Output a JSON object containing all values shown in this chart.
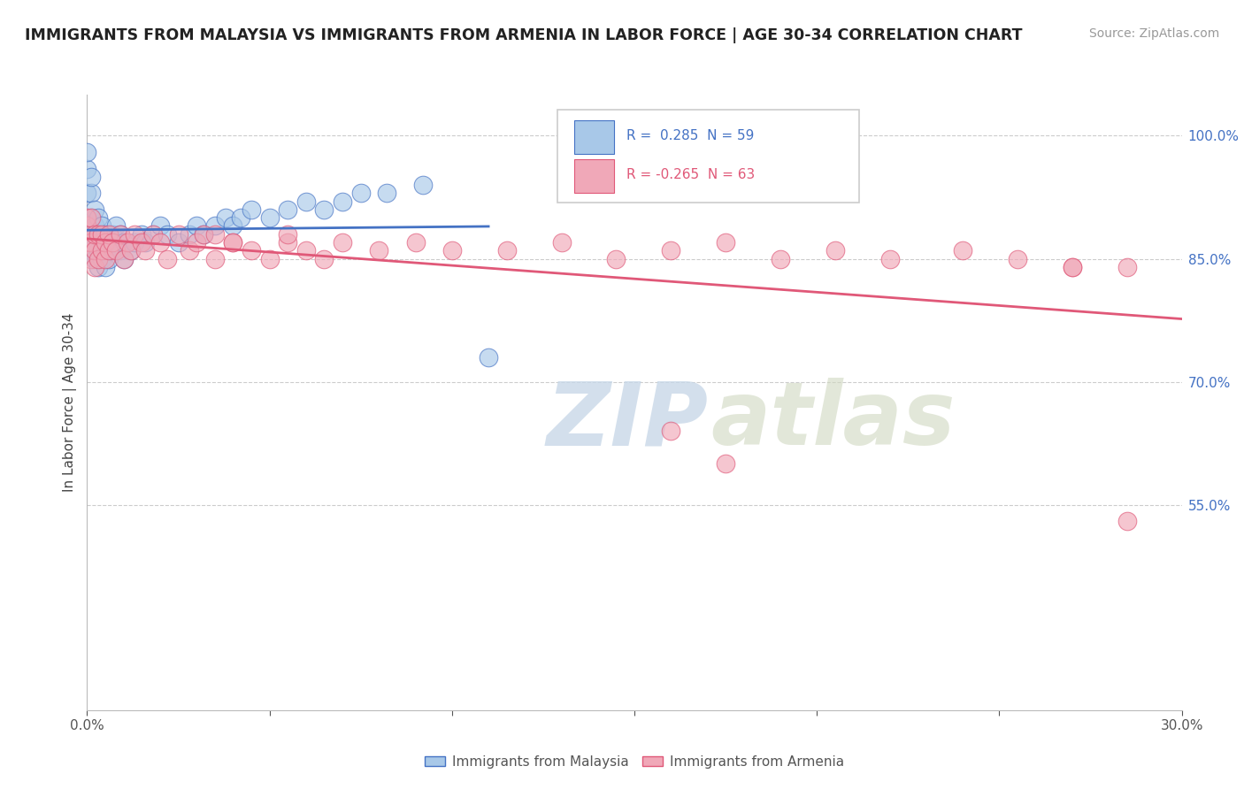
{
  "title": "IMMIGRANTS FROM MALAYSIA VS IMMIGRANTS FROM ARMENIA IN LABOR FORCE | AGE 30-34 CORRELATION CHART",
  "source": "Source: ZipAtlas.com",
  "ylabel": "In Labor Force | Age 30-34",
  "legend_label1": "Immigrants from Malaysia",
  "legend_label2": "Immigrants from Armenia",
  "r1": 0.285,
  "n1": 59,
  "r2": -0.265,
  "n2": 63,
  "color_blue": "#A8C8E8",
  "color_pink": "#F0A8B8",
  "line_color_blue": "#4472C4",
  "line_color_pink": "#E05878",
  "xlim": [
    0.0,
    0.3
  ],
  "ylim": [
    0.3,
    1.05
  ],
  "malaysia_x": [
    0.0,
    0.0,
    0.0,
    0.0,
    0.0,
    0.001,
    0.001,
    0.001,
    0.001,
    0.001,
    0.002,
    0.002,
    0.002,
    0.002,
    0.003,
    0.003,
    0.003,
    0.003,
    0.004,
    0.004,
    0.004,
    0.005,
    0.005,
    0.005,
    0.006,
    0.006,
    0.007,
    0.007,
    0.008,
    0.008,
    0.009,
    0.009,
    0.01,
    0.01,
    0.012,
    0.013,
    0.015,
    0.016,
    0.018,
    0.02,
    0.022,
    0.025,
    0.028,
    0.03,
    0.032,
    0.035,
    0.038,
    0.04,
    0.042,
    0.045,
    0.05,
    0.055,
    0.06,
    0.065,
    0.07,
    0.075,
    0.082,
    0.092,
    0.11
  ],
  "malaysia_y": [
    0.87,
    0.9,
    0.93,
    0.96,
    0.98,
    0.86,
    0.88,
    0.9,
    0.93,
    0.95,
    0.85,
    0.87,
    0.89,
    0.91,
    0.84,
    0.86,
    0.88,
    0.9,
    0.85,
    0.87,
    0.89,
    0.84,
    0.86,
    0.88,
    0.85,
    0.87,
    0.86,
    0.88,
    0.87,
    0.89,
    0.86,
    0.88,
    0.85,
    0.87,
    0.86,
    0.87,
    0.88,
    0.87,
    0.88,
    0.89,
    0.88,
    0.87,
    0.88,
    0.89,
    0.88,
    0.89,
    0.9,
    0.89,
    0.9,
    0.91,
    0.9,
    0.91,
    0.92,
    0.91,
    0.92,
    0.93,
    0.93,
    0.94,
    0.73
  ],
  "armenia_x": [
    0.0,
    0.0,
    0.0,
    0.001,
    0.001,
    0.001,
    0.002,
    0.002,
    0.002,
    0.003,
    0.003,
    0.004,
    0.004,
    0.005,
    0.005,
    0.006,
    0.006,
    0.007,
    0.008,
    0.009,
    0.01,
    0.011,
    0.012,
    0.013,
    0.015,
    0.016,
    0.018,
    0.02,
    0.022,
    0.025,
    0.028,
    0.03,
    0.032,
    0.035,
    0.04,
    0.045,
    0.05,
    0.055,
    0.06,
    0.065,
    0.07,
    0.08,
    0.09,
    0.1,
    0.115,
    0.13,
    0.145,
    0.16,
    0.175,
    0.19,
    0.205,
    0.22,
    0.24,
    0.255,
    0.27,
    0.285,
    0.16,
    0.175,
    0.035,
    0.04,
    0.055,
    0.27,
    0.285
  ],
  "armenia_y": [
    0.87,
    0.89,
    0.9,
    0.85,
    0.87,
    0.9,
    0.84,
    0.86,
    0.88,
    0.85,
    0.88,
    0.86,
    0.88,
    0.85,
    0.87,
    0.86,
    0.88,
    0.87,
    0.86,
    0.88,
    0.85,
    0.87,
    0.86,
    0.88,
    0.87,
    0.86,
    0.88,
    0.87,
    0.85,
    0.88,
    0.86,
    0.87,
    0.88,
    0.85,
    0.87,
    0.86,
    0.85,
    0.87,
    0.86,
    0.85,
    0.87,
    0.86,
    0.87,
    0.86,
    0.86,
    0.87,
    0.85,
    0.86,
    0.87,
    0.85,
    0.86,
    0.85,
    0.86,
    0.85,
    0.84,
    0.84,
    0.64,
    0.6,
    0.88,
    0.87,
    0.88,
    0.84,
    0.53
  ],
  "ytick_positions": [
    0.55,
    0.7,
    0.85,
    1.0
  ],
  "ytick_labels": [
    "55.0%",
    "70.0%",
    "85.0%",
    "100.0%"
  ],
  "xtick_positions": [
    0.0,
    0.05,
    0.1,
    0.15,
    0.2,
    0.25,
    0.3
  ],
  "xtick_labels": [
    "0.0%",
    "",
    "",
    "",
    "",
    "",
    "30.0%"
  ]
}
